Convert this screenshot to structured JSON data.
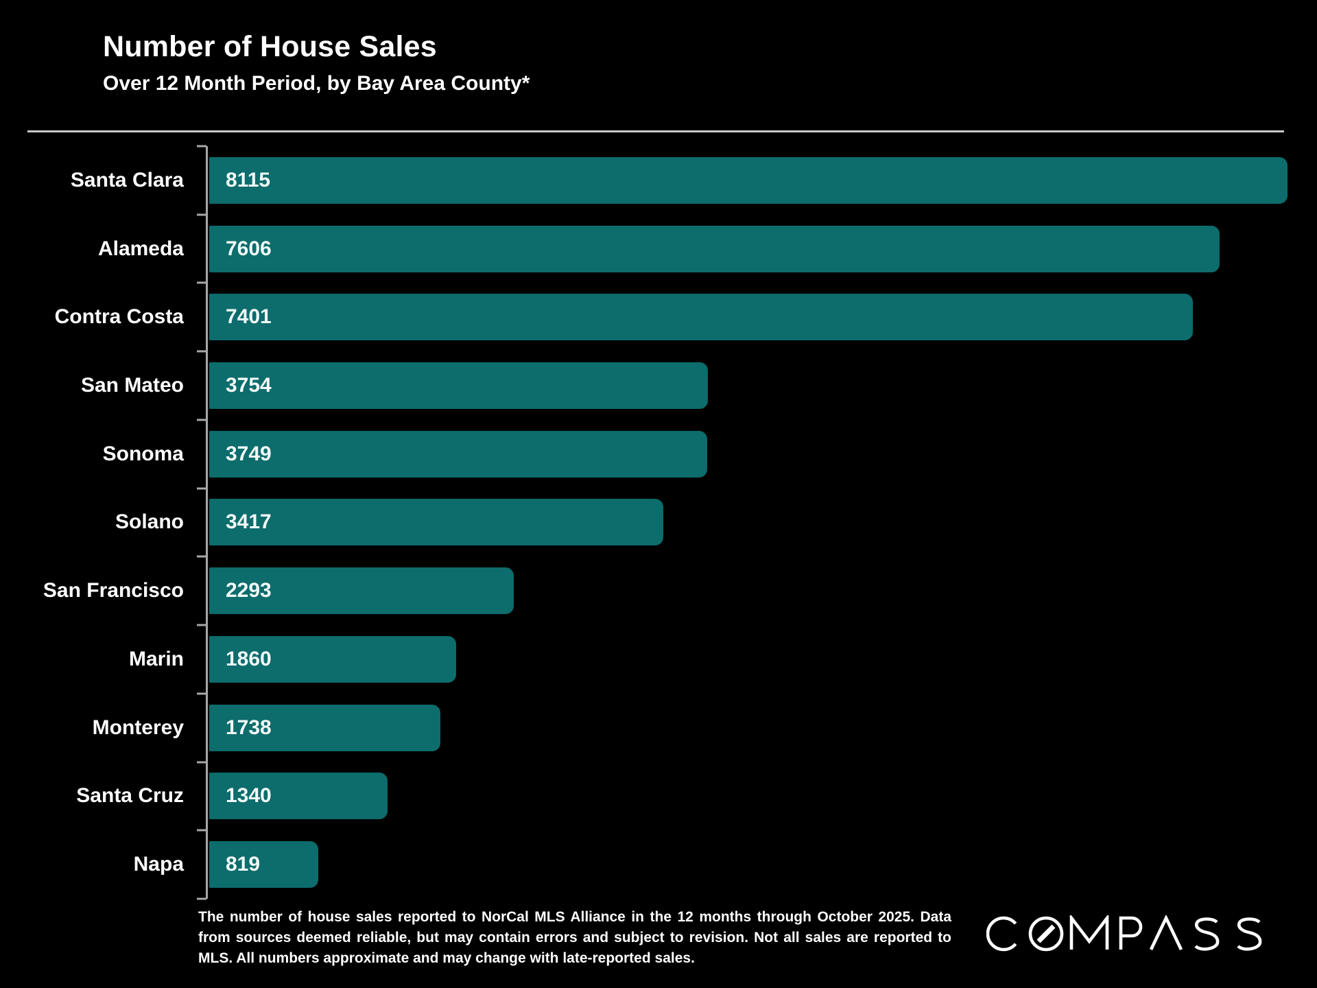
{
  "header": {
    "title": "Number of House Sales",
    "subtitle": "Over 12 Month Period, by Bay Area County*"
  },
  "chart_data": {
    "type": "bar",
    "orientation": "horizontal",
    "title": "Number of House Sales",
    "subtitle": "Over 12 Month Period, by Bay Area County*",
    "categories": [
      "Santa Clara",
      "Alameda",
      "Contra Costa",
      "San Mateo",
      "Sonoma",
      "Solano",
      "San Francisco",
      "Marin",
      "Monterey",
      "Santa Cruz",
      "Napa"
    ],
    "values": [
      8115,
      7606,
      7401,
      3754,
      3749,
      3417,
      2293,
      1860,
      1738,
      1340,
      819
    ],
    "xlim": [
      0,
      8115
    ],
    "value_labels": "inside-bar-start",
    "grid": false,
    "legend": false,
    "bar_color": "#0d6c6c",
    "label_color": "#ffffff"
  },
  "footnote": {
    "text": "The number of house sales reported to NorCal MLS Alliance in the 12 months through October 2025. Data from sources deemed reliable, but may contain errors and subject to revision. Not all sales are reported to MLS. All numbers approximate and may change with late-reported sales."
  },
  "logo": {
    "brand": "COMPASS"
  },
  "colors": {
    "background": "#000000",
    "bar": "#0d6c6c",
    "text": "#ffffff",
    "divider": "#c9c9c9",
    "axis": "#a8a8a8"
  }
}
